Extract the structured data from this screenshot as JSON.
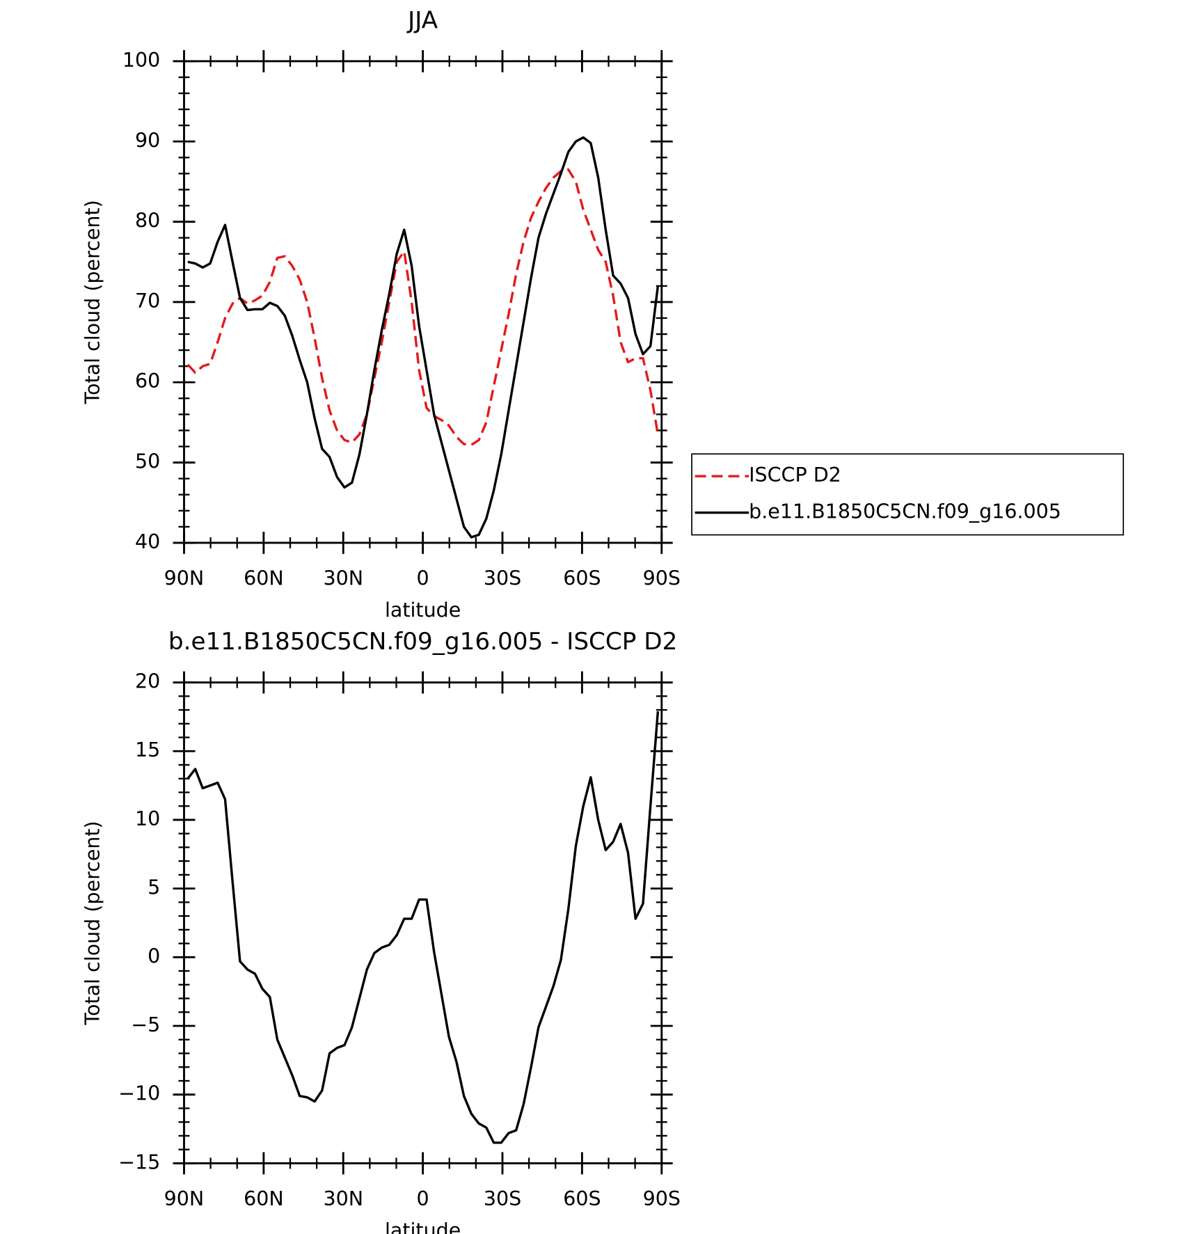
{
  "chart_data": [
    {
      "type": "line",
      "title": "JJA",
      "xlabel": "latitude",
      "ylabel": "Total cloud (percent)",
      "x": [
        88.59,
        85.78,
        82.97,
        80.16,
        77.34,
        74.53,
        71.72,
        68.91,
        66.09,
        63.28,
        60.47,
        57.66,
        54.84,
        52.03,
        49.22,
        46.41,
        43.59,
        40.78,
        37.97,
        35.16,
        32.34,
        29.53,
        26.72,
        23.91,
        21.09,
        18.28,
        15.47,
        12.66,
        9.84,
        7.03,
        4.22,
        1.41,
        -1.41,
        -4.22,
        -7.03,
        -9.84,
        -12.66,
        -15.47,
        -18.28,
        -21.09,
        -23.91,
        -26.72,
        -29.53,
        -32.34,
        -35.16,
        -37.97,
        -40.78,
        -43.59,
        -46.41,
        -49.22,
        -52.03,
        -54.84,
        -57.66,
        -60.47,
        -63.28,
        -66.09,
        -68.91,
        -71.72,
        -74.53,
        -77.34,
        -80.16,
        -82.97,
        -85.78,
        -88.59
      ],
      "series": [
        {
          "name": "ISCCP D2",
          "color": "#e41a1c",
          "linestyle": "dashed",
          "values": [
            62.2,
            61.2,
            62,
            62.3,
            65,
            68,
            69.8,
            70.5,
            69.8,
            70.2,
            70.8,
            72.5,
            75.5,
            75.7,
            74.5,
            72.8,
            70,
            65.5,
            60.5,
            56.5,
            54,
            52.8,
            52.5,
            53.5,
            56,
            60.5,
            65,
            70,
            75,
            76.3,
            70,
            61.5,
            56.8,
            55.8,
            55.3,
            54.6,
            53.2,
            52.3,
            52.2,
            52.8,
            55,
            59.5,
            64,
            68.5,
            73.5,
            77.5,
            80.5,
            82.5,
            84.2,
            85.5,
            86.3,
            86.5,
            85,
            81.5,
            79,
            76.5,
            75,
            70.8,
            65,
            62.5,
            63,
            63,
            59,
            53.5
          ]
        },
        {
          "name": "b.e11.B1850C5CN.f09_g16.005",
          "color": "#000000",
          "linestyle": "solid",
          "values": [
            75,
            74.8,
            74.3,
            74.8,
            77.5,
            79.6,
            75,
            70.5,
            69,
            69.1,
            69.1,
            69.9,
            69.5,
            68.3,
            65.8,
            62.8,
            60,
            55.5,
            51.7,
            50.7,
            48.2,
            46.9,
            47.5,
            51,
            56,
            61.5,
            66.5,
            71,
            76,
            79,
            74.5,
            67,
            61.5,
            56,
            52.5,
            49,
            45.5,
            42,
            40.7,
            41,
            43,
            46.5,
            51,
            56.5,
            62,
            67.5,
            73,
            78,
            81,
            83.5,
            86,
            88.7,
            90,
            90.5,
            89.8,
            85.5,
            79,
            73.3,
            72.3,
            70.5,
            66,
            63.5,
            64.5,
            72
          ]
        }
      ],
      "xlim": [
        90,
        -90
      ],
      "xticks": [
        {
          "value": 90,
          "label": "90N"
        },
        {
          "value": 60,
          "label": "60N"
        },
        {
          "value": 30,
          "label": "30N"
        },
        0,
        {
          "value": -30,
          "label": "30S"
        },
        {
          "value": -60,
          "label": "60S"
        },
        {
          "value": -90,
          "label": "90S"
        }
      ],
      "ylim": [
        40,
        100
      ],
      "yticks": [
        40,
        50,
        60,
        70,
        80,
        90,
        100
      ],
      "grid": false,
      "legend": "right"
    },
    {
      "type": "line",
      "title": "b.e11.B1850C5CN.f09_g16.005 - ISCCP D2",
      "xlabel": "latitude",
      "ylabel": "Total cloud (percent)",
      "x": [
        88.59,
        85.78,
        82.97,
        80.16,
        77.34,
        74.53,
        71.72,
        68.91,
        66.09,
        63.28,
        60.47,
        57.66,
        54.84,
        52.03,
        49.22,
        46.41,
        43.59,
        40.78,
        37.97,
        35.16,
        32.34,
        29.53,
        26.72,
        23.91,
        21.09,
        18.28,
        15.47,
        12.66,
        9.84,
        7.03,
        4.22,
        1.41,
        -1.41,
        -4.22,
        -7.03,
        -9.84,
        -12.66,
        -15.47,
        -18.28,
        -21.09,
        -23.91,
        -26.72,
        -29.53,
        -32.34,
        -35.16,
        -37.97,
        -40.78,
        -43.59,
        -46.41,
        -49.22,
        -52.03,
        -54.84,
        -57.66,
        -60.47,
        -63.28,
        -66.09,
        -68.91,
        -71.72,
        -74.53,
        -77.34,
        -80.16,
        -82.97,
        -85.78,
        -88.59
      ],
      "series": [
        {
          "color": "#000000",
          "linestyle": "solid",
          "values": [
            13,
            13.7,
            12.3,
            12.5,
            12.7,
            11.5,
            5.5,
            -0.3,
            -0.9,
            -1.2,
            -2.3,
            -2.9,
            -6,
            -7.3,
            -8.6,
            -10.1,
            -10.2,
            -10.5,
            -9.7,
            -7,
            -6.6,
            -6.4,
            -5.1,
            -3,
            -0.9,
            0.3,
            0.7,
            0.9,
            1.6,
            2.8,
            2.8,
            4.2,
            4.2,
            0.4,
            -2.7,
            -5.8,
            -7.6,
            -10.1,
            -11.4,
            -12.1,
            -12.4,
            -13.5,
            -13.5,
            -12.8,
            -12.6,
            -10.7,
            -8,
            -5.1,
            -3.6,
            -2.1,
            -0.2,
            3.5,
            8.1,
            11,
            13.1,
            10,
            7.8,
            8.4,
            9.7,
            7.6,
            2.8,
            3.9,
            11,
            17.9
          ]
        }
      ],
      "xlim": [
        90,
        -90
      ],
      "xticks": [
        {
          "value": 90,
          "label": "90N"
        },
        {
          "value": 60,
          "label": "60N"
        },
        {
          "value": 30,
          "label": "30N"
        },
        0,
        {
          "value": -30,
          "label": "30S"
        },
        {
          "value": -60,
          "label": "60S"
        },
        {
          "value": -90,
          "label": "90S"
        }
      ],
      "ylim": [
        -15,
        20
      ],
      "yticks": [
        {
          "value": -15,
          "label": "−15"
        },
        {
          "value": -10,
          "label": "−10"
        },
        {
          "value": -5,
          "label": "−5"
        },
        0,
        5,
        10,
        15,
        20
      ],
      "grid": false
    }
  ]
}
